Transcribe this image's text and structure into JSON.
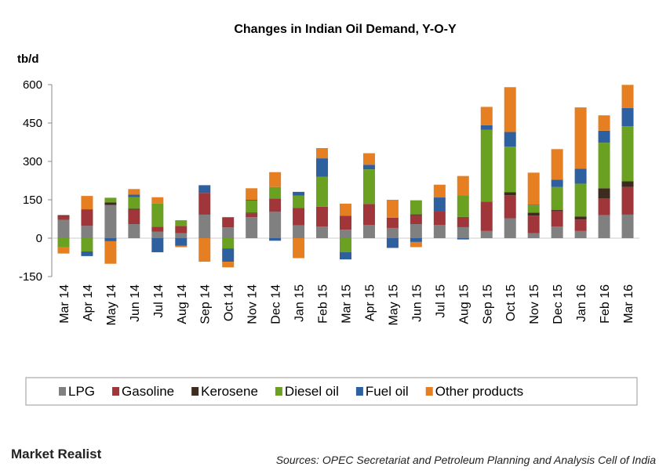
{
  "chart_data": {
    "type": "stacked-bar",
    "title": "Changes in Indian Oil Demand, Y-O-Y",
    "ylabel": "tb/d",
    "categories": [
      "Mar 14",
      "Apr 14",
      "May 14",
      "Jun 14",
      "Jul 14",
      "Aug 14",
      "Sep 14",
      "Oct 14",
      "Nov 14",
      "Dec 14",
      "Jan 15",
      "Feb 15",
      "Mar 15",
      "Apr 15",
      "May 15",
      "Jun 15",
      "Jul 15",
      "Aug 15",
      "Sep 15",
      "Oct 15",
      "Nov 15",
      "Dec 15",
      "Jan 16",
      "Feb 16",
      "Mar 16"
    ],
    "series": [
      {
        "name": "LPG",
        "color": "#808080",
        "values": [
          72,
          48,
          130,
          55,
          25,
          20,
          92,
          42,
          82,
          103,
          50,
          45,
          33,
          52,
          40,
          55,
          52,
          43,
          28,
          78,
          20,
          45,
          28,
          90,
          92
        ]
      },
      {
        "name": "Gasoline",
        "color": "#a0353a",
        "values": [
          15,
          65,
          0,
          57,
          20,
          28,
          85,
          40,
          15,
          52,
          68,
          78,
          55,
          82,
          40,
          35,
          55,
          40,
          115,
          90,
          68,
          60,
          45,
          65,
          108
        ]
      },
      {
        "name": "Kerosene",
        "color": "#3d2b1f",
        "values": [
          3,
          0,
          10,
          3,
          0,
          0,
          0,
          0,
          3,
          0,
          0,
          0,
          0,
          0,
          0,
          3,
          0,
          0,
          0,
          12,
          12,
          5,
          12,
          40,
          22
        ]
      },
      {
        "name": "Diesel oil",
        "color": "#6aa121",
        "values": [
          -35,
          -52,
          18,
          45,
          90,
          22,
          0,
          -40,
          47,
          45,
          48,
          117,
          -55,
          135,
          0,
          55,
          0,
          85,
          280,
          178,
          28,
          90,
          128,
          178,
          215
        ]
      },
      {
        "name": "Fuel oil",
        "color": "#2e5f9e",
        "values": [
          0,
          -18,
          -12,
          10,
          -55,
          -30,
          30,
          -52,
          3,
          -10,
          15,
          72,
          -28,
          18,
          -38,
          -15,
          52,
          -5,
          18,
          57,
          3,
          28,
          58,
          47,
          72
        ]
      },
      {
        "name": "Other products",
        "color": "#e67e22",
        "values": [
          -25,
          52,
          -88,
          22,
          25,
          -5,
          -92,
          -22,
          45,
          58,
          -78,
          40,
          47,
          45,
          70,
          -20,
          50,
          75,
          72,
          175,
          125,
          120,
          240,
          60,
          90
        ]
      }
    ],
    "ylim": [
      -150,
      600
    ],
    "yticks": [
      -150,
      0,
      150,
      300,
      450,
      600
    ]
  },
  "footer": {
    "brand": "Market Realist",
    "source": "Sources: OPEC Secretariat and Petroleum Planning and Analysis Cell of India"
  }
}
